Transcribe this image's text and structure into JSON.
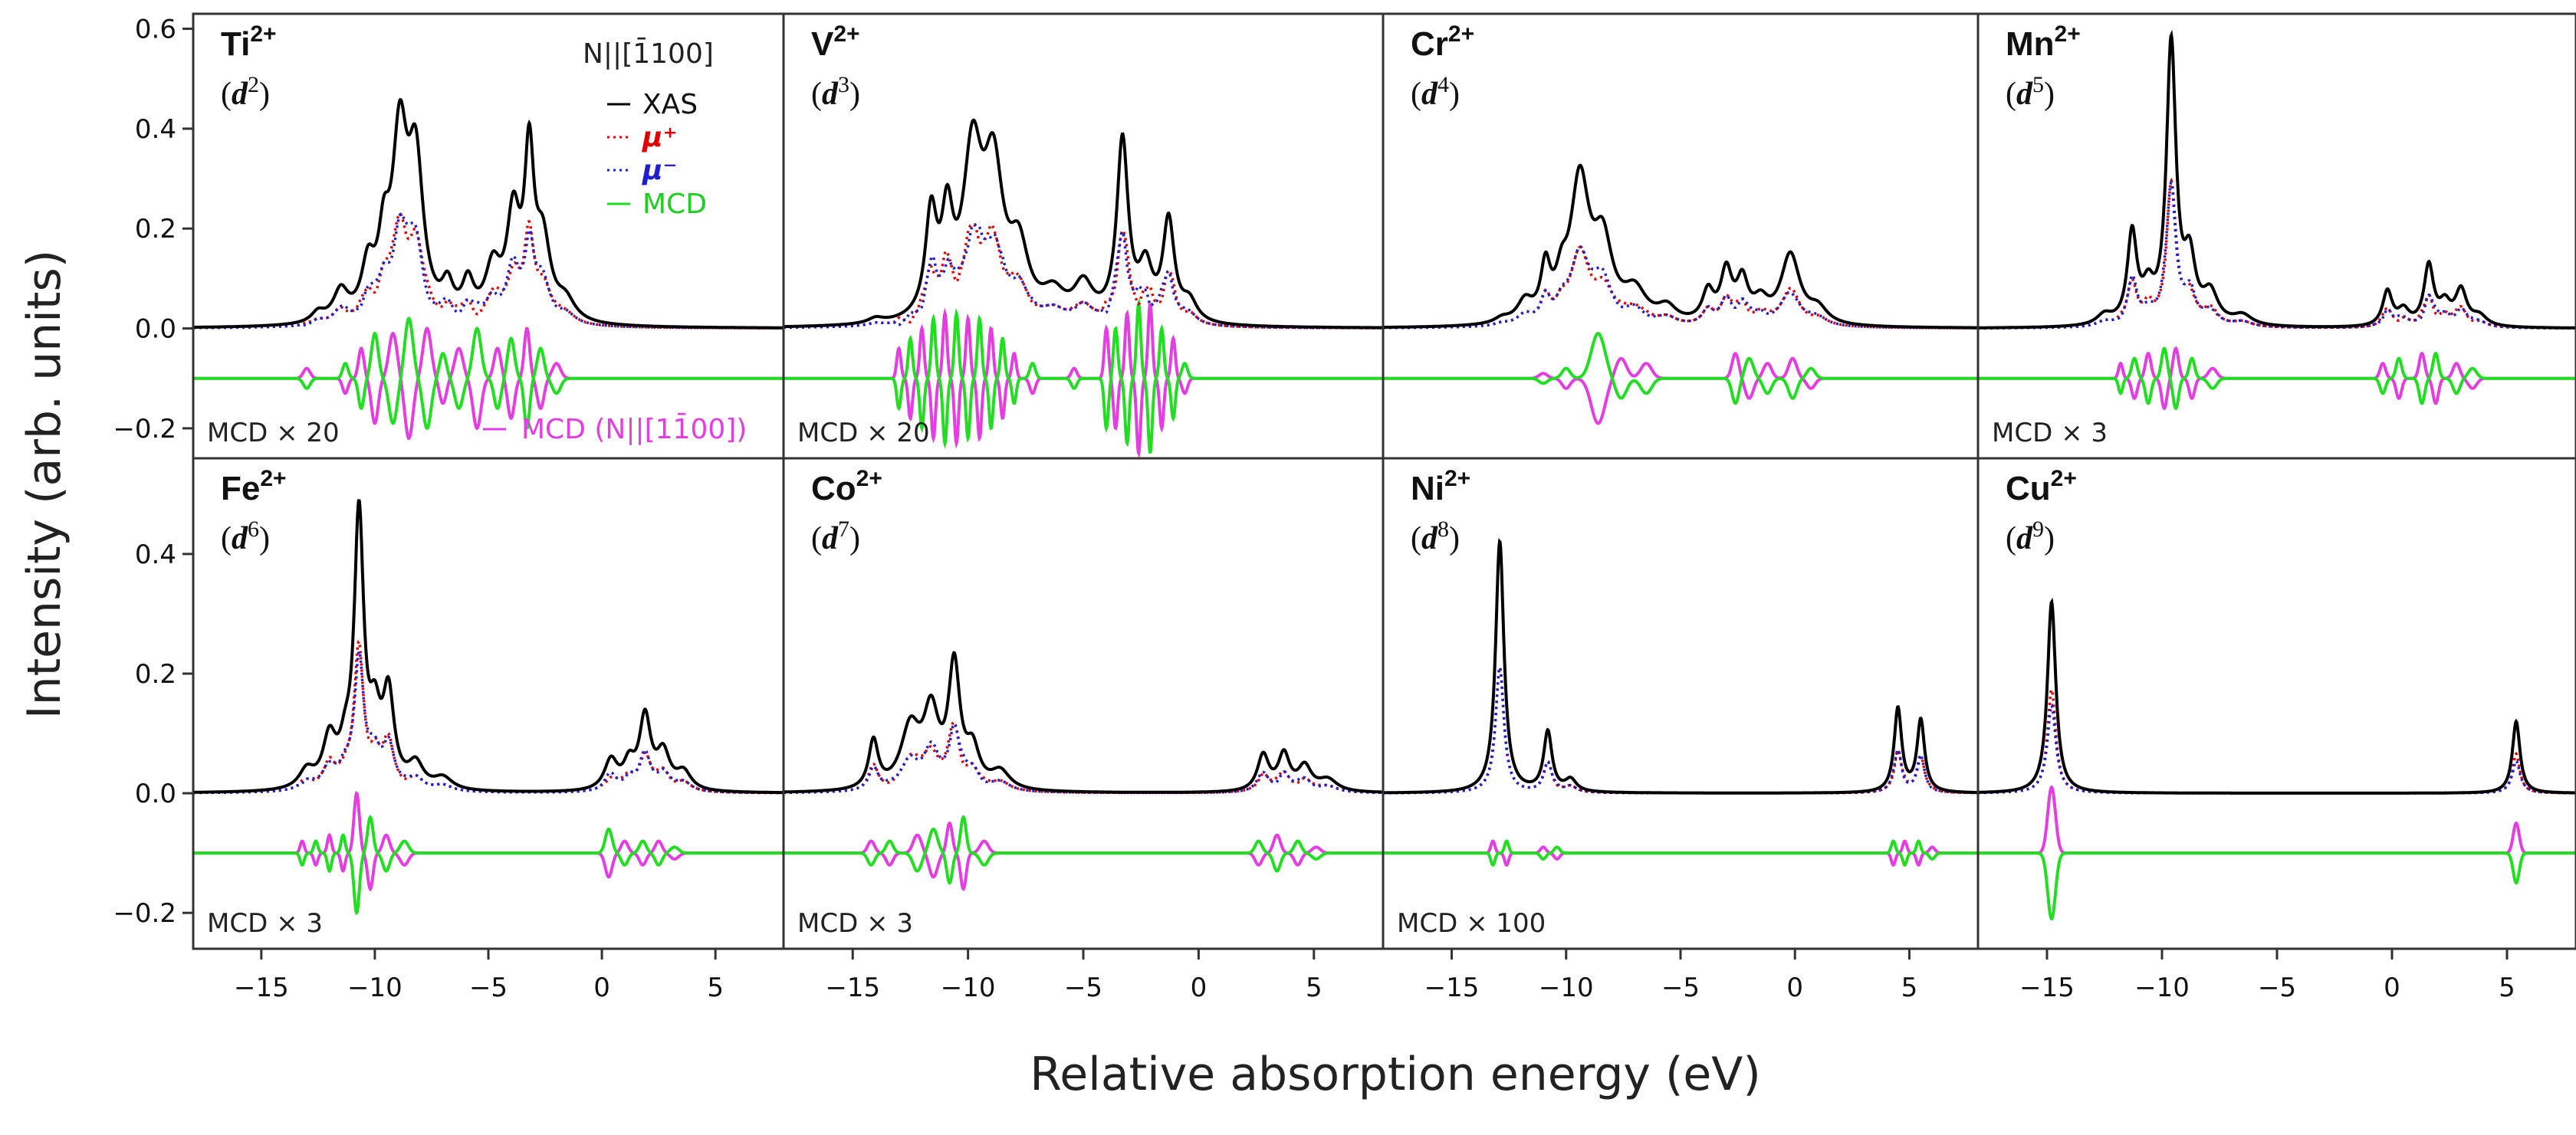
{
  "chart_data": {
    "type": "line",
    "layout": "2 rows x 4 columns of panels sharing axes",
    "xlabel": "Relative absorption energy (eV)",
    "ylabel": "Intensity (arb. units)",
    "xlim": [
      -18,
      8
    ],
    "x_ticks": [
      -15,
      -10,
      -5,
      0,
      5
    ],
    "x_tick_labels": [
      "−15",
      "−10",
      "−5",
      "0",
      "5"
    ],
    "rows": [
      {
        "ylim": [
          -0.26,
          0.63
        ],
        "y_ticks": [
          0.6,
          0.4,
          0.2,
          0.0,
          -0.2
        ],
        "y_tick_labels": [
          "0.6",
          "0.4",
          "0.2",
          "0.0",
          "−0.2"
        ]
      },
      {
        "ylim": [
          -0.26,
          0.56
        ],
        "y_ticks": [
          0.4,
          0.2,
          0.0,
          -0.2
        ],
        "y_tick_labels": [
          "0.4",
          "0.2",
          "0.0",
          "−0.2"
        ]
      }
    ],
    "legend": {
      "title": "N||[1̄100]",
      "entries": [
        {
          "label": "XAS",
          "color": "#000000",
          "style": "solid"
        },
        {
          "label": "μ⁺",
          "color": "#e00000",
          "style": "dotted"
        },
        {
          "label": "μ⁻",
          "color": "#1f1fd0",
          "style": "dotted"
        },
        {
          "label": "MCD",
          "color": "#22dd22",
          "style": "solid"
        }
      ],
      "extra_entry": {
        "label": "MCD (N||[11̄00])",
        "color": "#e23ee0",
        "style": "solid"
      }
    },
    "mcd_baseline": -0.1,
    "panels": [
      {
        "ion": "Ti",
        "charge": "2+",
        "config_d": "d",
        "config_n": "2",
        "mcd_scale": "MCD × 20",
        "row": 0,
        "col": 0,
        "xas_peaks": [
          [
            -12.5,
            0.02,
            0.35
          ],
          [
            -11.5,
            0.06,
            0.4
          ],
          [
            -10.3,
            0.1,
            0.35
          ],
          [
            -9.6,
            0.13,
            0.3
          ],
          [
            -8.9,
            0.35,
            0.4
          ],
          [
            -8.2,
            0.3,
            0.4
          ],
          [
            -6.8,
            0.06,
            0.3
          ],
          [
            -5.9,
            0.07,
            0.3
          ],
          [
            -4.8,
            0.1,
            0.4
          ],
          [
            -3.9,
            0.2,
            0.35
          ],
          [
            -3.2,
            0.31,
            0.25
          ],
          [
            -2.6,
            0.15,
            0.4
          ],
          [
            -1.6,
            0.04,
            0.5
          ]
        ],
        "mcd_lines": [
          [
            -13,
            0.02,
            0.25
          ],
          [
            -11.3,
            -0.03,
            0.2
          ],
          [
            -10.6,
            0.06,
            0.2
          ],
          [
            -10,
            -0.09,
            0.25
          ],
          [
            -9.2,
            0.09,
            0.3
          ],
          [
            -8.5,
            -0.12,
            0.3
          ],
          [
            -7.7,
            0.1,
            0.3
          ],
          [
            -7,
            -0.05,
            0.25
          ],
          [
            -6.3,
            0.06,
            0.3
          ],
          [
            -5.5,
            -0.1,
            0.3
          ],
          [
            -4.6,
            0.06,
            0.25
          ],
          [
            -4,
            -0.08,
            0.25
          ],
          [
            -3.3,
            0.1,
            0.2
          ],
          [
            -2.7,
            -0.06,
            0.25
          ],
          [
            -2,
            0.03,
            0.3
          ]
        ]
      },
      {
        "ion": "V",
        "charge": "2+",
        "config_d": "d",
        "config_n": "3",
        "mcd_scale": "MCD × 20",
        "row": 0,
        "col": 1,
        "xas_peaks": [
          [
            -14,
            0.01,
            0.4
          ],
          [
            -11.6,
            0.2,
            0.3
          ],
          [
            -10.9,
            0.18,
            0.3
          ],
          [
            -9.8,
            0.32,
            0.5
          ],
          [
            -8.9,
            0.28,
            0.5
          ],
          [
            -7.8,
            0.13,
            0.5
          ],
          [
            -6.3,
            0.05,
            0.6
          ],
          [
            -5,
            0.07,
            0.5
          ],
          [
            -3.3,
            0.36,
            0.3
          ],
          [
            -2.3,
            0.1,
            0.35
          ],
          [
            -1.3,
            0.2,
            0.3
          ],
          [
            -0.4,
            0.04,
            0.4
          ]
        ],
        "mcd_lines": [
          [
            -13,
            0.06,
            0.15
          ],
          [
            -12.5,
            -0.08,
            0.15
          ],
          [
            -12,
            0.1,
            0.15
          ],
          [
            -11.5,
            -0.12,
            0.15
          ],
          [
            -11,
            0.13,
            0.15
          ],
          [
            -10.5,
            -0.13,
            0.15
          ],
          [
            -10,
            0.12,
            0.15
          ],
          [
            -9.5,
            -0.12,
            0.15
          ],
          [
            -9,
            0.1,
            0.15
          ],
          [
            -8.5,
            -0.08,
            0.15
          ],
          [
            -8,
            0.05,
            0.15
          ],
          [
            -7.2,
            -0.03,
            0.2
          ],
          [
            -5.4,
            0.02,
            0.2
          ],
          [
            -4,
            0.1,
            0.15
          ],
          [
            -3.6,
            -0.1,
            0.15
          ],
          [
            -3.1,
            0.13,
            0.15
          ],
          [
            -2.6,
            -0.15,
            0.15
          ],
          [
            -2.1,
            0.15,
            0.15
          ],
          [
            -1.6,
            -0.1,
            0.15
          ],
          [
            -1.1,
            0.08,
            0.15
          ],
          [
            -0.6,
            -0.03,
            0.2
          ]
        ]
      },
      {
        "ion": "Cr",
        "charge": "2+",
        "config_d": "d",
        "config_n": "4",
        "mcd_scale": "",
        "row": 0,
        "col": 2,
        "xas_peaks": [
          [
            -12.8,
            0.01,
            0.4
          ],
          [
            -11.8,
            0.04,
            0.4
          ],
          [
            -10.9,
            0.1,
            0.25
          ],
          [
            -10.2,
            0.06,
            0.3
          ],
          [
            -9.4,
            0.28,
            0.5
          ],
          [
            -8.4,
            0.15,
            0.5
          ],
          [
            -7,
            0.06,
            0.6
          ],
          [
            -5.6,
            0.03,
            0.5
          ],
          [
            -3.8,
            0.06,
            0.3
          ],
          [
            -3,
            0.1,
            0.3
          ],
          [
            -2.3,
            0.08,
            0.3
          ],
          [
            -1.5,
            0.04,
            0.4
          ],
          [
            -0.2,
            0.14,
            0.5
          ],
          [
            1,
            0.03,
            0.5
          ]
        ],
        "mcd_lines": [
          [
            -11,
            0.01,
            0.3
          ],
          [
            -10,
            -0.02,
            0.3
          ],
          [
            -8.6,
            -0.09,
            0.5
          ],
          [
            -7.6,
            0.04,
            0.4
          ],
          [
            -6.5,
            0.03,
            0.4
          ],
          [
            -2.6,
            0.05,
            0.25
          ],
          [
            -2,
            -0.04,
            0.3
          ],
          [
            -1.2,
            0.03,
            0.3
          ],
          [
            -0.1,
            0.04,
            0.3
          ],
          [
            0.7,
            -0.02,
            0.3
          ]
        ]
      },
      {
        "ion": "Mn",
        "charge": "2+",
        "config_d": "d",
        "config_n": "5",
        "mcd_scale": "MCD × 3",
        "row": 0,
        "col": 3,
        "xas_peaks": [
          [
            -12.5,
            0.02,
            0.4
          ],
          [
            -11.3,
            0.18,
            0.25
          ],
          [
            -10.6,
            0.06,
            0.3
          ],
          [
            -9.6,
            0.56,
            0.25
          ],
          [
            -8.8,
            0.12,
            0.3
          ],
          [
            -7.9,
            0.06,
            0.4
          ],
          [
            -6.5,
            0.02,
            0.5
          ],
          [
            -0.2,
            0.07,
            0.25
          ],
          [
            0.5,
            0.03,
            0.3
          ],
          [
            1.6,
            0.12,
            0.25
          ],
          [
            2.3,
            0.04,
            0.3
          ],
          [
            3,
            0.07,
            0.3
          ],
          [
            3.8,
            0.02,
            0.4
          ]
        ],
        "mcd_lines": [
          [
            -11.8,
            0.03,
            0.15
          ],
          [
            -11.2,
            -0.04,
            0.2
          ],
          [
            -10.6,
            0.05,
            0.2
          ],
          [
            -9.9,
            -0.06,
            0.2
          ],
          [
            -9.4,
            0.06,
            0.2
          ],
          [
            -8.7,
            -0.04,
            0.2
          ],
          [
            -7.8,
            0.02,
            0.3
          ],
          [
            -0.4,
            0.03,
            0.2
          ],
          [
            0.3,
            -0.04,
            0.2
          ],
          [
            1.3,
            0.05,
            0.2
          ],
          [
            1.9,
            -0.05,
            0.2
          ],
          [
            2.8,
            0.03,
            0.25
          ],
          [
            3.5,
            -0.02,
            0.3
          ]
        ]
      },
      {
        "ion": "Fe",
        "charge": "2+",
        "config_d": "d",
        "config_n": "6",
        "mcd_scale": "MCD × 3",
        "row": 1,
        "col": 0,
        "xas_peaks": [
          [
            -13,
            0.03,
            0.4
          ],
          [
            -12,
            0.08,
            0.35
          ],
          [
            -11.3,
            0.05,
            0.3
          ],
          [
            -10.7,
            0.45,
            0.25
          ],
          [
            -10,
            0.1,
            0.3
          ],
          [
            -9.4,
            0.15,
            0.3
          ],
          [
            -8.2,
            0.04,
            0.4
          ],
          [
            -7,
            0.02,
            0.5
          ],
          [
            0.4,
            0.05,
            0.35
          ],
          [
            1.2,
            0.04,
            0.3
          ],
          [
            1.9,
            0.12,
            0.3
          ],
          [
            2.7,
            0.06,
            0.35
          ],
          [
            3.6,
            0.03,
            0.4
          ]
        ],
        "mcd_lines": [
          [
            -13.2,
            0.02,
            0.15
          ],
          [
            -12.6,
            -0.02,
            0.15
          ],
          [
            -12,
            0.03,
            0.15
          ],
          [
            -11.4,
            -0.03,
            0.15
          ],
          [
            -10.8,
            0.1,
            0.2
          ],
          [
            -10.2,
            -0.06,
            0.2
          ],
          [
            -9.5,
            0.03,
            0.25
          ],
          [
            -8.7,
            -0.02,
            0.3
          ],
          [
            0.3,
            -0.04,
            0.25
          ],
          [
            1,
            0.02,
            0.25
          ],
          [
            1.8,
            -0.02,
            0.25
          ],
          [
            2.5,
            0.02,
            0.25
          ],
          [
            3.2,
            -0.01,
            0.3
          ]
        ]
      },
      {
        "ion": "Co",
        "charge": "2+",
        "config_d": "d",
        "config_n": "7",
        "mcd_scale": "MCD × 3",
        "row": 1,
        "col": 1,
        "xas_peaks": [
          [
            -14.1,
            0.08,
            0.25
          ],
          [
            -12.5,
            0.1,
            0.5
          ],
          [
            -11.6,
            0.12,
            0.4
          ],
          [
            -10.6,
            0.2,
            0.3
          ],
          [
            -9.8,
            0.06,
            0.35
          ],
          [
            -8.6,
            0.03,
            0.5
          ],
          [
            2.8,
            0.06,
            0.3
          ],
          [
            3.7,
            0.06,
            0.3
          ],
          [
            4.6,
            0.04,
            0.35
          ],
          [
            5.6,
            0.02,
            0.5
          ]
        ],
        "mcd_lines": [
          [
            -14.2,
            0.02,
            0.25
          ],
          [
            -13.4,
            -0.02,
            0.25
          ],
          [
            -12.2,
            0.03,
            0.3
          ],
          [
            -11.5,
            -0.04,
            0.3
          ],
          [
            -10.8,
            0.05,
            0.2
          ],
          [
            -10.2,
            -0.06,
            0.2
          ],
          [
            -9.3,
            0.02,
            0.3
          ],
          [
            2.6,
            -0.02,
            0.25
          ],
          [
            3.4,
            0.03,
            0.25
          ],
          [
            4.3,
            -0.02,
            0.25
          ],
          [
            5.1,
            0.01,
            0.3
          ]
        ]
      },
      {
        "ion": "Ni",
        "charge": "2+",
        "config_d": "d",
        "config_n": "8",
        "mcd_scale": "MCD × 100",
        "row": 1,
        "col": 2,
        "xas_peaks": [
          [
            -12.9,
            0.42,
            0.22
          ],
          [
            -10.8,
            0.1,
            0.22
          ],
          [
            -9.8,
            0.02,
            0.3
          ],
          [
            4.5,
            0.14,
            0.2
          ],
          [
            5.5,
            0.12,
            0.2
          ]
        ],
        "mcd_lines": [
          [
            -13.2,
            0.02,
            0.15
          ],
          [
            -12.6,
            -0.02,
            0.15
          ],
          [
            -11,
            0.01,
            0.2
          ],
          [
            -10.4,
            -0.01,
            0.2
          ],
          [
            4.3,
            -0.02,
            0.15
          ],
          [
            4.8,
            0.02,
            0.15
          ],
          [
            5.4,
            -0.02,
            0.15
          ],
          [
            6,
            0.01,
            0.2
          ]
        ]
      },
      {
        "ion": "Cu",
        "charge": "2+",
        "config_d": "d",
        "config_n": "9",
        "mcd_scale": "",
        "row": 1,
        "col": 3,
        "xas_peaks": [
          [
            -14.8,
            0.32,
            0.22
          ],
          [
            5.4,
            0.12,
            0.2
          ]
        ],
        "mcd_lines": [
          [
            -14.8,
            0.11,
            0.28
          ],
          [
            5.4,
            0.05,
            0.22
          ]
        ]
      }
    ]
  }
}
